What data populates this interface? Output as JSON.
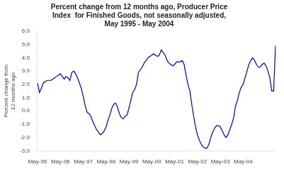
{
  "chart_data": {
    "type": "line",
    "title": "Percent change from 12 months ago, Producer Price\nIndex  for Finished Goods, not seasonally adjusted,\nMay 1995 - May 2004",
    "ylabel": "Percent change from\n12 months ago",
    "categories": [
      "May-95",
      null,
      null,
      null,
      null,
      null,
      null,
      null,
      null,
      null,
      null,
      null,
      "May-96",
      null,
      null,
      null,
      null,
      null,
      null,
      null,
      null,
      null,
      null,
      null,
      "May-97",
      null,
      null,
      null,
      null,
      null,
      null,
      null,
      null,
      null,
      null,
      null,
      "May-98",
      null,
      null,
      null,
      null,
      null,
      null,
      null,
      null,
      null,
      null,
      null,
      "May-99",
      null,
      null,
      null,
      null,
      null,
      null,
      null,
      null,
      null,
      null,
      null,
      "May-00",
      null,
      null,
      null,
      null,
      null,
      null,
      null,
      null,
      null,
      null,
      null,
      "May-01",
      null,
      null,
      null,
      null,
      null,
      null,
      null,
      null,
      null,
      null,
      null,
      "May-02",
      null,
      null,
      null,
      null,
      null,
      null,
      null,
      null,
      null,
      null,
      null,
      "May-03",
      null,
      null,
      null,
      null,
      null,
      null,
      null,
      null,
      null,
      null,
      null,
      "May-04",
      null,
      null,
      null,
      null,
      null,
      null,
      null,
      null,
      null,
      null,
      null,
      null,
      null,
      null,
      null,
      null,
      null
    ],
    "values": [
      2.1,
      1.4,
      1.7,
      2.1,
      2.2,
      2.3,
      2.3,
      2.3,
      2.4,
      2.5,
      2.6,
      2.7,
      2.8,
      2.6,
      2.4,
      2.6,
      2.5,
      2.3,
      2.9,
      3.0,
      2.8,
      2.5,
      2.1,
      1.7,
      1.1,
      0.4,
      -0.1,
      -0.2,
      -0.4,
      -0.8,
      -1.1,
      -1.4,
      -1.6,
      -1.8,
      -1.7,
      -1.5,
      -1.2,
      -0.7,
      -0.3,
      0.2,
      0.5,
      0.6,
      0.3,
      -0.2,
      -0.5,
      -0.6,
      -0.4,
      -0.3,
      0.2,
      0.8,
      1.4,
      1.6,
      2.0,
      2.9,
      3.1,
      3.3,
      3.6,
      3.8,
      4.0,
      4.1,
      4.2,
      4.3,
      4.2,
      4.1,
      4.2,
      4.6,
      4.4,
      4.2,
      3.8,
      3.6,
      3.5,
      3.4,
      3.5,
      3.7,
      3.7,
      3.7,
      3.8,
      3.5,
      2.7,
      2.0,
      1.5,
      0.5,
      -0.4,
      -1.2,
      -1.8,
      -2.2,
      -2.5,
      -2.7,
      -2.8,
      -2.8,
      -2.5,
      -2.0,
      -1.6,
      -1.3,
      -1.1,
      -1.1,
      -1.2,
      -1.5,
      -1.8,
      -2.0,
      -1.8,
      -1.4,
      -1.0,
      -0.5,
      0.4,
      0.8,
      1.4,
      1.8,
      2.0,
      2.5,
      3.0,
      3.5,
      3.8,
      4.0,
      3.8,
      3.5,
      3.3,
      3.3,
      3.5,
      3.6,
      3.4,
      3.0,
      2.5,
      1.5,
      1.5,
      4.9
    ],
    "color": "#0000cc",
    "ylim": [
      -3,
      6
    ],
    "yticks": [
      {
        "value": -3,
        "label": "-3.0"
      },
      {
        "value": -2,
        "label": "-2.0"
      },
      {
        "value": -1,
        "label": "-1.0"
      },
      {
        "value": 0,
        "label": "0.0"
      },
      {
        "value": 1,
        "label": "1.0"
      },
      {
        "value": 2,
        "label": "2.0"
      },
      {
        "value": 3,
        "label": "3.0"
      },
      {
        "value": 4,
        "label": "4.0"
      },
      {
        "value": 5,
        "label": "5.0"
      },
      {
        "value": 6,
        "label": "6.0"
      }
    ],
    "grid": false
  }
}
